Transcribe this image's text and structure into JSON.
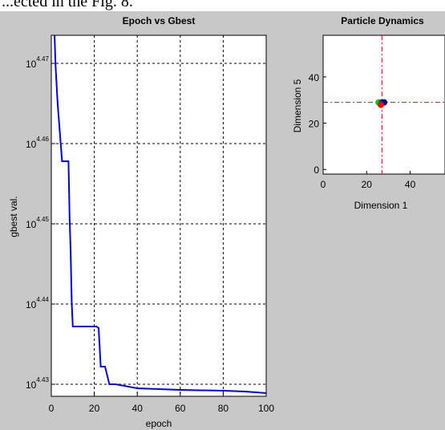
{
  "caption": "...ected in the Fig. 8.",
  "chart_data": [
    {
      "type": "line",
      "title": "Epoch vs Gbest",
      "xlabel": "epoch",
      "ylabel": "gbest val.",
      "xlim": [
        0,
        100
      ],
      "ylim_log10": [
        4.4285,
        4.4735
      ],
      "y_scale": "log",
      "grid": true,
      "xticks": [
        0,
        20,
        40,
        60,
        80,
        100
      ],
      "yticks": [
        {
          "base": "10",
          "exp": "4.43",
          "log10": 4.43
        },
        {
          "base": "10",
          "exp": "4.44",
          "log10": 4.44
        },
        {
          "base": "10",
          "exp": "4.45",
          "log10": 4.45
        },
        {
          "base": "10",
          "exp": "4.46",
          "log10": 4.46
        },
        {
          "base": "10",
          "exp": "4.47",
          "log10": 4.47
        }
      ],
      "series": [
        {
          "color": "#0000ff",
          "points_log10": [
            [
              1.5,
              4.4735
            ],
            [
              2,
              4.4695
            ],
            [
              3,
              4.4648
            ],
            [
              5,
              4.4578
            ],
            [
              8,
              4.4578
            ],
            [
              8.5,
              4.4508
            ],
            [
              9,
              4.4465
            ],
            [
              9.5,
              4.44
            ],
            [
              10,
              4.4372
            ],
            [
              21,
              4.4372
            ],
            [
              22,
              4.437
            ],
            [
              23,
              4.4322
            ],
            [
              25,
              4.4322
            ],
            [
              27,
              4.43
            ],
            [
              30,
              4.43
            ],
            [
              40,
              4.4295
            ],
            [
              60,
              4.4293
            ],
            [
              80,
              4.4292
            ],
            [
              90,
              4.4291
            ],
            [
              100,
              4.4289
            ]
          ]
        }
      ]
    },
    {
      "type": "scatter",
      "title": "Particle Dynamics",
      "xlabel": "Dimension 1",
      "ylabel": "Dimension 5",
      "xlim": [
        0,
        56
      ],
      "ylim": [
        -2,
        58
      ],
      "xticks": [
        0,
        20,
        40
      ],
      "yticks": [
        0,
        20,
        40
      ],
      "crosshair": {
        "x": 27,
        "y": 29,
        "color": "#ff0000",
        "style": "dash-dot"
      },
      "points": [
        {
          "x": 25.5,
          "y": 29,
          "color": "#00cc00"
        },
        {
          "x": 27,
          "y": 29,
          "color": "#2222ff"
        },
        {
          "x": 28,
          "y": 29,
          "color": "#000080"
        },
        {
          "x": 26.5,
          "y": 28,
          "color": "#ff0000"
        }
      ]
    }
  ]
}
